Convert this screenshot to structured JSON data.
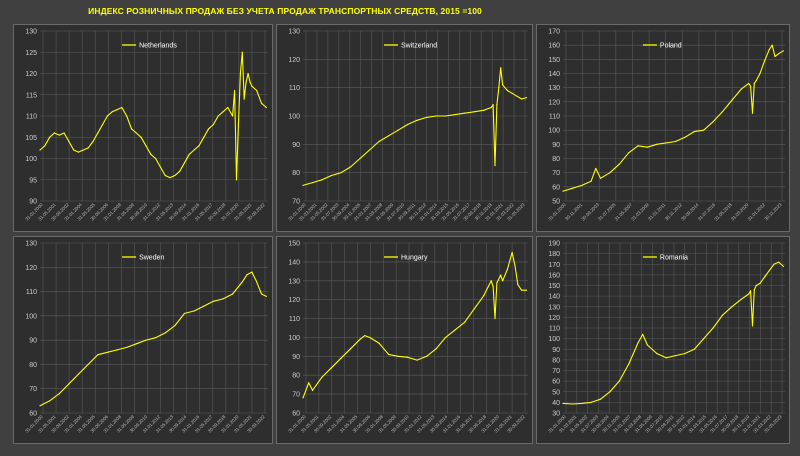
{
  "title": "ИНДЕКС РОЗНИЧНЫХ ПРОДАЖ БЕЗ УЧЕТА ПРОДАЖ ТРАНСПОРТНЫХ СРЕДСТВ, 2015 =100",
  "colors": {
    "line": "#ffff00",
    "background": "#2e2e2e",
    "grid": "#5a5a5a",
    "page": "#404040"
  },
  "chart_data": [
    {
      "type": "line",
      "series": [
        {
          "name": "Netherlands"
        }
      ],
      "ylim": [
        90,
        130
      ],
      "yticks": [
        90,
        95,
        100,
        105,
        110,
        115,
        120,
        125,
        130
      ],
      "xrange": [
        2000.0,
        2023.67
      ],
      "xticks": [
        "31.01.2000",
        "31.05.2001",
        "30.09.2002",
        "31.01.2004",
        "31.05.2005",
        "30.09.2006",
        "31.01.2008",
        "31.05.2009",
        "30.09.2010",
        "31.01.2012",
        "31.05.2013",
        "30.09.2014",
        "31.01.2016",
        "31.05.2017",
        "30.09.2018",
        "31.01.2020",
        "31.05.2021",
        "30.09.2022"
      ],
      "x": [
        2000.0,
        2000.5,
        2001.0,
        2001.5,
        2002.0,
        2002.5,
        2003.0,
        2003.5,
        2004.0,
        2004.5,
        2005.0,
        2005.5,
        2006.0,
        2006.5,
        2007.0,
        2007.5,
        2008.0,
        2008.5,
        2009.0,
        2009.5,
        2010.0,
        2010.5,
        2011.0,
        2011.5,
        2012.0,
        2012.5,
        2013.0,
        2013.5,
        2014.0,
        2014.5,
        2015.0,
        2015.5,
        2016.0,
        2016.5,
        2017.0,
        2017.5,
        2018.0,
        2018.5,
        2019.0,
        2019.5,
        2020.0,
        2020.2,
        2020.4,
        2020.6,
        2020.8,
        2021.0,
        2021.2,
        2021.4,
        2021.6,
        2021.8,
        2022.0,
        2022.5,
        2023.0,
        2023.5
      ],
      "values": [
        102,
        103,
        105,
        106,
        105.5,
        106,
        104,
        102,
        101.5,
        102,
        102.5,
        104,
        106,
        108,
        110,
        111,
        111.5,
        112,
        110,
        107,
        106,
        105,
        103,
        101,
        100,
        98,
        96,
        95.5,
        96,
        97,
        99,
        101,
        102,
        103,
        105,
        107,
        108,
        110,
        111,
        112,
        110,
        116,
        95,
        108,
        120,
        125,
        114,
        118,
        120,
        118,
        117,
        116,
        113,
        112
      ]
    },
    {
      "type": "line",
      "series": [
        {
          "name": "Switzerland"
        }
      ],
      "ylim": [
        70,
        130
      ],
      "yticks": [
        70,
        80,
        90,
        100,
        110,
        120,
        130
      ],
      "xrange": [
        2000.0,
        2023.67
      ],
      "xticks": [
        "31.01.2000",
        "31.03.2001",
        "31.05.2002",
        "31.07.2003",
        "30.09.2004",
        "30.11.2005",
        "31.01.2007",
        "31.03.2008",
        "31.05.2009",
        "31.07.2010",
        "30.09.2011",
        "30.11.2012",
        "31.01.2014",
        "31.03.2015",
        "31.05.2016",
        "31.07.2017",
        "30.09.2018",
        "30.11.2019",
        "31.01.2021",
        "31.03.2022",
        "31.05.2023"
      ],
      "x": [
        2000.0,
        2001.0,
        2002.0,
        2003.0,
        2004.0,
        2005.0,
        2006.0,
        2007.0,
        2008.0,
        2009.0,
        2010.0,
        2011.0,
        2012.0,
        2013.0,
        2014.0,
        2015.0,
        2016.0,
        2017.0,
        2018.0,
        2019.0,
        2019.8,
        2020.0,
        2020.2,
        2020.4,
        2020.6,
        2020.8,
        2021.0,
        2021.5,
        2022.0,
        2022.5,
        2023.0,
        2023.5
      ],
      "values": [
        75.5,
        76.5,
        77.5,
        79,
        80,
        82,
        85,
        88,
        91,
        93,
        95,
        97,
        98.5,
        99.5,
        100,
        100,
        100.5,
        101,
        101.5,
        102,
        103,
        104,
        82.5,
        104,
        110,
        117,
        111,
        109,
        108,
        107,
        106,
        106.5
      ]
    },
    {
      "type": "line",
      "series": [
        {
          "name": "Poland"
        }
      ],
      "ylim": [
        50,
        170
      ],
      "yticks": [
        50,
        60,
        70,
        80,
        90,
        100,
        110,
        120,
        130,
        140,
        150,
        160,
        170
      ],
      "xrange": [
        2000.0,
        2023.67
      ],
      "xticks": [
        "31.01.2000",
        "30.11.2001",
        "30.09.2003",
        "31.07.2005",
        "31.05.2007",
        "31.03.2009",
        "31.01.2011",
        "30.11.2012",
        "30.09.2014",
        "31.07.2016",
        "31.05.2018",
        "31.03.2020",
        "31.01.2022",
        "30.11.2023"
      ],
      "x": [
        2000.0,
        2001.0,
        2002.0,
        2003.0,
        2003.5,
        2004.0,
        2005.0,
        2006.0,
        2007.0,
        2008.0,
        2009.0,
        2010.0,
        2011.0,
        2012.0,
        2013.0,
        2014.0,
        2015.0,
        2016.0,
        2017.0,
        2018.0,
        2019.0,
        2019.8,
        2020.0,
        2020.2,
        2020.4,
        2020.6,
        2021.0,
        2021.5,
        2022.0,
        2022.3,
        2022.6,
        2023.0,
        2023.5
      ],
      "values": [
        57,
        59,
        61,
        64,
        73,
        66,
        70,
        76,
        84,
        89,
        88,
        90,
        91,
        92,
        95,
        99,
        100,
        106,
        113,
        121,
        129,
        133,
        131,
        112,
        133,
        135,
        140,
        149,
        157,
        160,
        152,
        154,
        156
      ]
    },
    {
      "type": "line",
      "series": [
        {
          "name": "Sweden"
        }
      ],
      "ylim": [
        60,
        130
      ],
      "yticks": [
        60,
        70,
        80,
        90,
        100,
        110,
        120,
        130
      ],
      "xrange": [
        2000.0,
        2023.67
      ],
      "xticks": [
        "31.01.2000",
        "31.05.2001",
        "30.09.2002",
        "31.01.2004",
        "31.05.2005",
        "30.09.2006",
        "31.01.2008",
        "31.05.2009",
        "30.09.2010",
        "31.01.2012",
        "31.05.2013",
        "30.09.2014",
        "31.01.2016",
        "31.05.2017",
        "30.09.2018",
        "31.01.2020",
        "31.05.2021",
        "30.09.2022"
      ],
      "x": [
        2000.0,
        2001.0,
        2002.0,
        2003.0,
        2004.0,
        2005.0,
        2006.0,
        2007.0,
        2008.0,
        2009.0,
        2010.0,
        2011.0,
        2012.0,
        2013.0,
        2014.0,
        2015.0,
        2016.0,
        2017.0,
        2018.0,
        2019.0,
        2020.0,
        2021.0,
        2021.5,
        2022.0,
        2022.5,
        2023.0,
        2023.5
      ],
      "values": [
        63,
        65,
        68,
        72,
        76,
        80,
        84,
        85,
        86,
        87,
        88.5,
        90,
        91,
        93,
        96,
        101,
        102,
        104,
        106,
        107,
        109,
        114,
        117,
        118,
        114,
        109,
        108
      ]
    },
    {
      "type": "line",
      "series": [
        {
          "name": "Hungary"
        }
      ],
      "ylim": [
        60,
        150
      ],
      "yticks": [
        60,
        70,
        80,
        90,
        100,
        110,
        120,
        130,
        140,
        150
      ],
      "xrange": [
        2000.0,
        2023.67
      ],
      "xticks": [
        "31.01.2000",
        "31.05.2001",
        "30.09.2002",
        "31.01.2004",
        "31.05.2005",
        "30.09.2006",
        "31.01.2008",
        "31.05.2009",
        "30.09.2010",
        "31.01.2012",
        "31.05.2013",
        "30.09.2014",
        "31.01.2016",
        "31.05.2017",
        "30.09.2018",
        "31.01.2020",
        "31.05.2021",
        "30.09.2022"
      ],
      "x": [
        2000.0,
        2000.6,
        2001.0,
        2002.0,
        2003.0,
        2004.0,
        2005.0,
        2006.0,
        2006.5,
        2007.0,
        2008.0,
        2009.0,
        2010.0,
        2011.0,
        2012.0,
        2013.0,
        2014.0,
        2015.0,
        2016.0,
        2017.0,
        2018.0,
        2019.0,
        2019.8,
        2020.0,
        2020.2,
        2020.4,
        2020.8,
        2021.0,
        2021.5,
        2022.0,
        2022.3,
        2022.6,
        2023.0,
        2023.5
      ],
      "values": [
        68,
        76,
        72,
        79,
        84,
        89,
        94,
        99,
        101,
        100,
        97,
        91,
        90,
        89.5,
        88,
        90,
        94,
        100,
        104,
        108,
        115,
        122,
        130,
        127,
        110,
        129,
        133,
        130,
        136,
        145,
        138,
        128,
        125,
        125
      ]
    },
    {
      "type": "line",
      "series": [
        {
          "name": "Romania"
        }
      ],
      "ylim": [
        30,
        190
      ],
      "yticks": [
        30,
        40,
        50,
        60,
        70,
        80,
        90,
        100,
        110,
        120,
        130,
        140,
        150,
        160,
        170,
        180,
        190
      ],
      "xrange": [
        2000.0,
        2023.67
      ],
      "xticks": [
        "31.01.2000",
        "31.03.2001",
        "31.05.2002",
        "31.07.2003",
        "30.09.2004",
        "30.11.2005",
        "31.01.2007",
        "31.03.2008",
        "31.05.2009",
        "31.07.2010",
        "30.09.2011",
        "30.11.2012",
        "31.01.2014",
        "31.03.2015",
        "31.05.2016",
        "31.07.2017",
        "30.09.2018",
        "30.11.2019",
        "31.01.2021",
        "31.03.2022",
        "31.05.2023"
      ],
      "x": [
        2000.0,
        2001.0,
        2002.0,
        2003.0,
        2004.0,
        2005.0,
        2006.0,
        2007.0,
        2008.0,
        2008.5,
        2009.0,
        2010.0,
        2011.0,
        2012.0,
        2013.0,
        2014.0,
        2015.0,
        2016.0,
        2017.0,
        2018.0,
        2019.0,
        2019.8,
        2020.0,
        2020.2,
        2020.4,
        2020.6,
        2021.0,
        2021.5,
        2022.0,
        2022.5,
        2023.0,
        2023.5
      ],
      "values": [
        39,
        38.5,
        39,
        40,
        43,
        50,
        60,
        76,
        96,
        104,
        94,
        86,
        82,
        84,
        86,
        90,
        100,
        110,
        122,
        130,
        137,
        142,
        145,
        112,
        146,
        150,
        152,
        158,
        164,
        170,
        172,
        168
      ]
    }
  ]
}
